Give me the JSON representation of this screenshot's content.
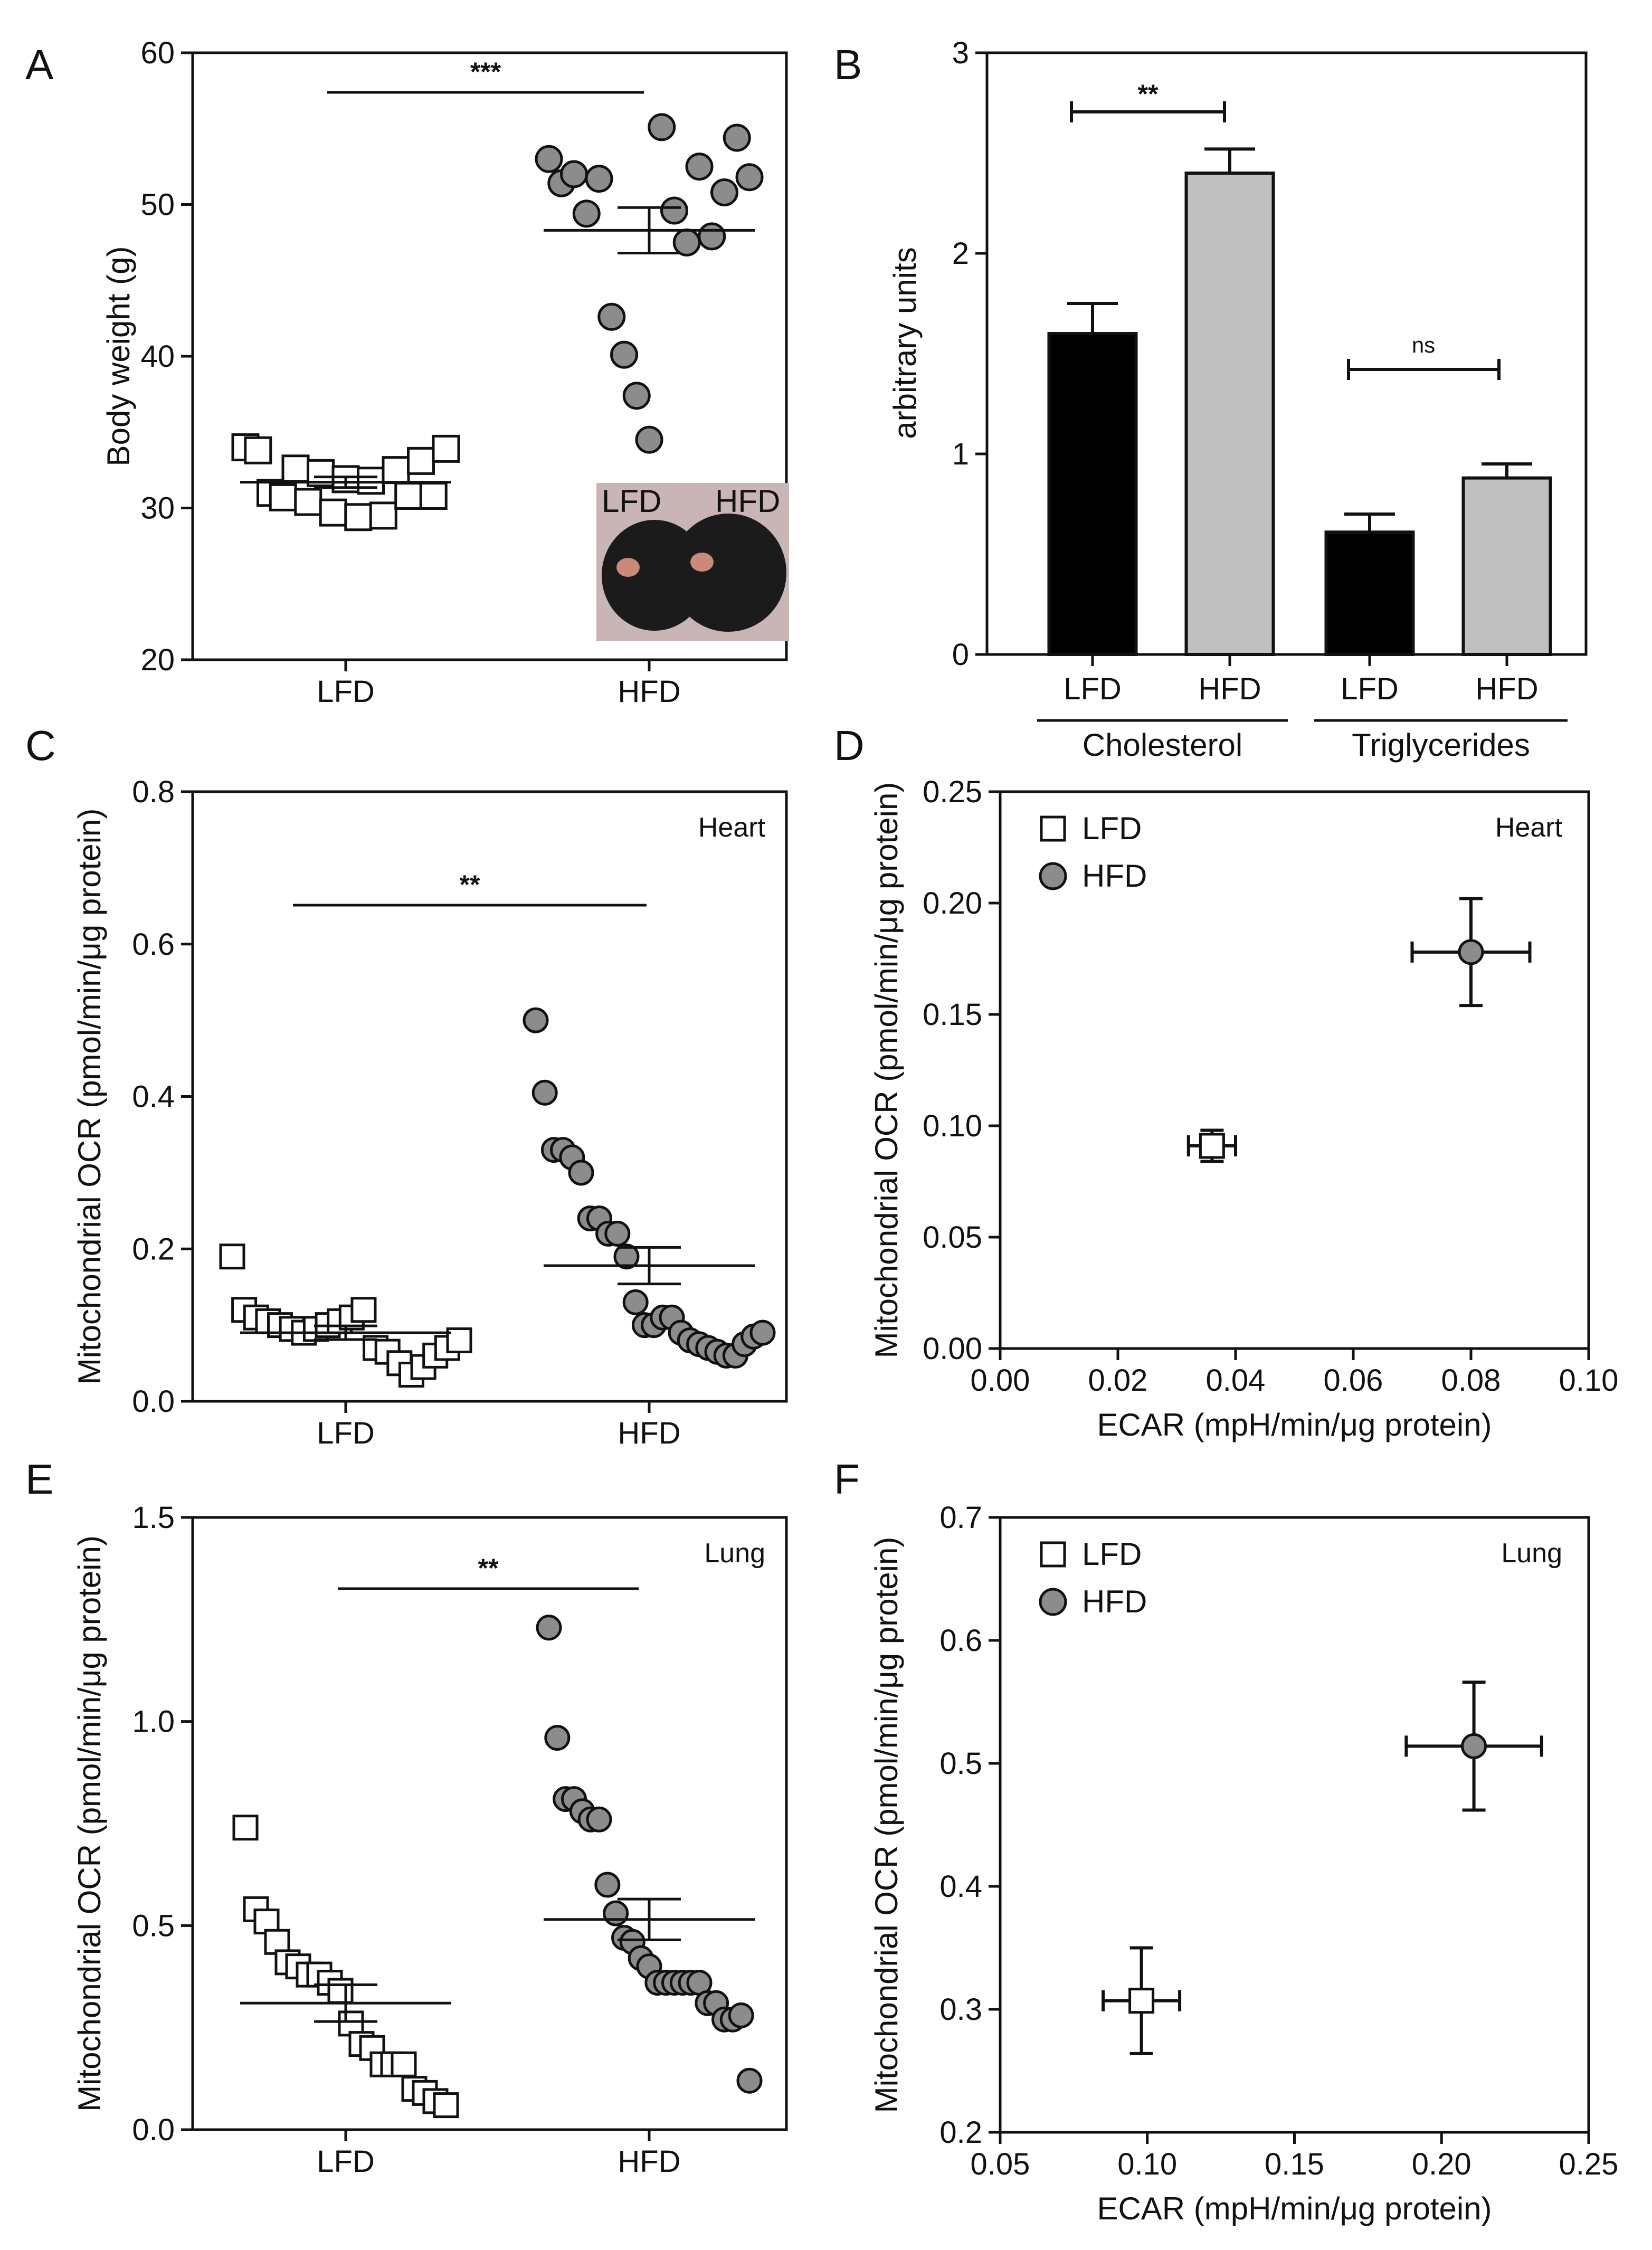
{
  "chart_data": [
    {
      "type": "scatter",
      "panel": "A",
      "ylabel": "Body weight (g)",
      "ylim": [
        20,
        60
      ],
      "yticks": [
        20,
        30,
        40,
        50,
        60
      ],
      "categories": [
        "LFD",
        "HFD"
      ],
      "significance": "***",
      "inset_labels": [
        "LFD",
        "HFD"
      ],
      "series": [
        {
          "name": "LFD",
          "marker": "square",
          "values": [
            34.0,
            33.8,
            31.0,
            30.7,
            32.6,
            30.4,
            32.3,
            29.7,
            31.9,
            29.4,
            31.8,
            29.5,
            32.5,
            30.8,
            33.1,
            30.8,
            33.9
          ],
          "mean": 31.7,
          "sem": 0.35
        },
        {
          "name": "HFD",
          "marker": "circle",
          "values": [
            53.0,
            51.4,
            52.0,
            49.4,
            51.7,
            42.6,
            40.1,
            37.4,
            34.5,
            55.1,
            49.6,
            47.5,
            52.5,
            47.9,
            50.8,
            54.4,
            51.8
          ],
          "mean": 48.3,
          "sem": 1.5
        }
      ]
    },
    {
      "type": "bar",
      "panel": "B",
      "ylabel": "arbitrary units",
      "ylim": [
        0,
        3
      ],
      "yticks": [
        0,
        1,
        2,
        3
      ],
      "groups": [
        "Cholesterol",
        "Triglycerides"
      ],
      "bars": [
        {
          "label": "LFD",
          "group": "Cholesterol",
          "value": 1.6,
          "error": 0.15,
          "color": "#000000"
        },
        {
          "label": "HFD",
          "group": "Cholesterol",
          "value": 2.4,
          "error": 0.12,
          "color": "#c0c0c0"
        },
        {
          "label": "LFD",
          "group": "Triglycerides",
          "value": 0.61,
          "error": 0.09,
          "color": "#000000"
        },
        {
          "label": "HFD",
          "group": "Triglycerides",
          "value": 0.88,
          "error": 0.07,
          "color": "#c0c0c0"
        }
      ],
      "significance": [
        {
          "group": "Cholesterol",
          "text": "**"
        },
        {
          "group": "Triglycerides",
          "text": "ns"
        }
      ]
    },
    {
      "type": "scatter",
      "panel": "C",
      "ylabel": "Mitochondrial OCR (pmol/min/μg protein)",
      "ylim": [
        0,
        0.8
      ],
      "yticks": [
        "0.0",
        "0.2",
        "0.4",
        "0.6",
        "0.8"
      ],
      "categories": [
        "LFD",
        "HFD"
      ],
      "significance": "**",
      "tissue": "Heart",
      "series": [
        {
          "name": "LFD",
          "marker": "square",
          "values": [
            0.19,
            0.12,
            0.11,
            0.105,
            0.1,
            0.095,
            0.09,
            0.095,
            0.1,
            0.105,
            0.11,
            0.12,
            0.07,
            0.065,
            0.05,
            0.035,
            0.045,
            0.06,
            0.07,
            0.08
          ],
          "mean": 0.09,
          "sem": 0.009
        },
        {
          "name": "HFD",
          "marker": "circle",
          "values": [
            0.5,
            0.405,
            0.33,
            0.33,
            0.32,
            0.3,
            0.24,
            0.24,
            0.22,
            0.22,
            0.19,
            0.13,
            0.1,
            0.1,
            0.11,
            0.11,
            0.09,
            0.08,
            0.075,
            0.07,
            0.065,
            0.06,
            0.06,
            0.075,
            0.085,
            0.09
          ],
          "mean": 0.178,
          "sem": 0.024
        }
      ]
    },
    {
      "type": "scatter",
      "panel": "D",
      "xlabel": "ECAR (mpH/min/μg protein)",
      "ylabel": "Mitochondrial OCR (pmol/min/μg protein)",
      "xlim": [
        0,
        0.1
      ],
      "ylim": [
        0,
        0.25
      ],
      "xticks": [
        "0.00",
        "0.02",
        "0.04",
        "0.06",
        "0.08",
        "0.10"
      ],
      "yticks": [
        "0.00",
        "0.05",
        "0.10",
        "0.15",
        "0.20",
        "0.25"
      ],
      "tissue": "Heart",
      "legend": [
        "LFD",
        "HFD"
      ],
      "points": [
        {
          "name": "LFD",
          "marker": "square",
          "x": 0.036,
          "y": 0.091,
          "xerr": 0.004,
          "yerr": 0.007
        },
        {
          "name": "HFD",
          "marker": "circle",
          "x": 0.08,
          "y": 0.178,
          "xerr": 0.01,
          "yerr": 0.024
        }
      ]
    },
    {
      "type": "scatter",
      "panel": "E",
      "ylabel": "Mitochondrial OCR (pmol/min/μg protein)",
      "ylim": [
        0,
        1.5
      ],
      "yticks": [
        "0.0",
        "0.5",
        "1.0",
        "1.5"
      ],
      "categories": [
        "LFD",
        "HFD"
      ],
      "significance": "**",
      "tissue": "Lung",
      "series": [
        {
          "name": "LFD",
          "marker": "square",
          "values": [
            0.74,
            0.54,
            0.51,
            0.46,
            0.41,
            0.4,
            0.38,
            0.38,
            0.36,
            0.34,
            0.26,
            0.21,
            0.2,
            0.16,
            0.16,
            0.16,
            0.1,
            0.09,
            0.07,
            0.06
          ],
          "mean": 0.31,
          "sem": 0.045
        },
        {
          "name": "HFD",
          "marker": "circle",
          "values": [
            1.23,
            0.96,
            0.81,
            0.81,
            0.78,
            0.76,
            0.76,
            0.6,
            0.53,
            0.47,
            0.46,
            0.42,
            0.4,
            0.36,
            0.36,
            0.36,
            0.36,
            0.36,
            0.36,
            0.31,
            0.31,
            0.27,
            0.27,
            0.28,
            0.12
          ],
          "mean": 0.515,
          "sem": 0.05
        }
      ]
    },
    {
      "type": "scatter",
      "panel": "F",
      "xlabel": "ECAR (mpH/min/μg protein)",
      "ylabel": "Mitochondrial OCR (pmol/min/μg protein)",
      "xlim": [
        0.05,
        0.25
      ],
      "ylim": [
        0.2,
        0.7
      ],
      "xticks": [
        "0.05",
        "0.10",
        "0.15",
        "0.20",
        "0.25"
      ],
      "yticks": [
        "0.2",
        "0.3",
        "0.4",
        "0.5",
        "0.6",
        "0.7"
      ],
      "tissue": "Lung",
      "legend": [
        "LFD",
        "HFD"
      ],
      "points": [
        {
          "name": "LFD",
          "marker": "square",
          "x": 0.098,
          "y": 0.307,
          "xerr": 0.013,
          "yerr": 0.043
        },
        {
          "name": "HFD",
          "marker": "circle",
          "x": 0.211,
          "y": 0.514,
          "xerr": 0.023,
          "yerr": 0.052
        }
      ]
    }
  ]
}
